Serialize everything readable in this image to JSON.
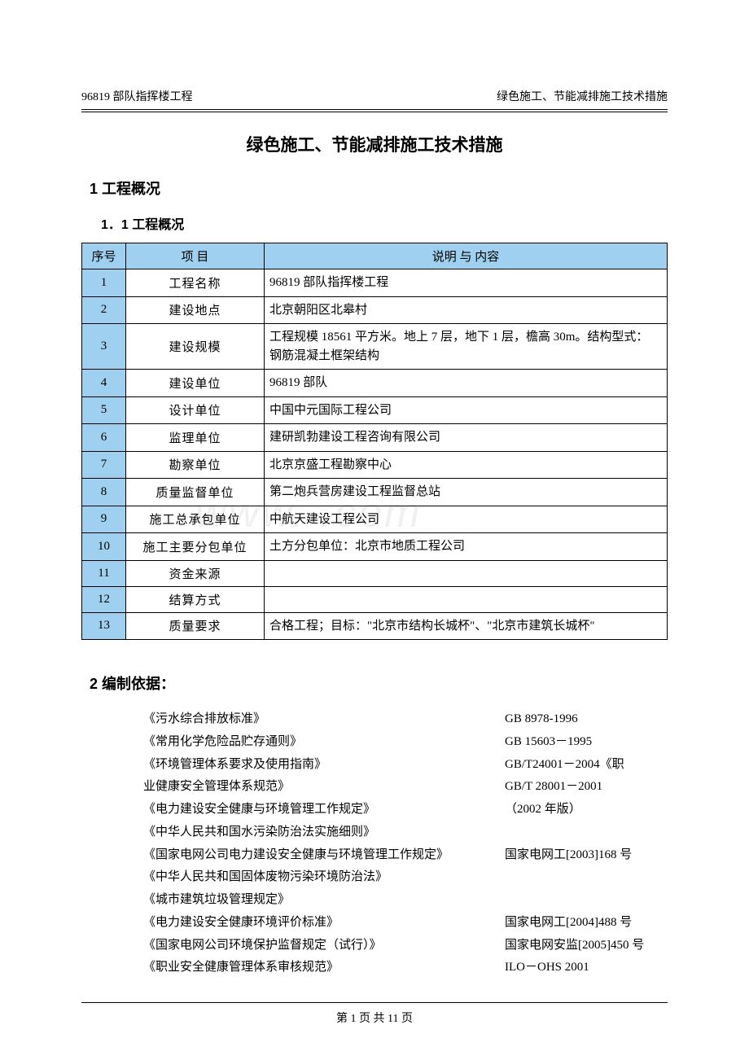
{
  "header": {
    "left": "96819 部队指挥楼工程",
    "right": "绿色施工、节能减排施工技术措施"
  },
  "title": "绿色施工、节能减排施工技术措施",
  "section1": {
    "heading": "1 工程概况",
    "subheading": "1．1 工程概况"
  },
  "table": {
    "headers": {
      "seq": "序号",
      "item": "项   目",
      "desc": "说明 与 内容"
    },
    "rows": [
      {
        "seq": "1",
        "item": "工程名称",
        "desc": "96819 部队指挥楼工程"
      },
      {
        "seq": "2",
        "item": "建设地点",
        "desc": "北京朝阳区北皋村"
      },
      {
        "seq": "3",
        "item": "建设规模",
        "desc": "工程规模 18561 平方米。地上 7 层，地下 1 层，檐高 30m。结构型式：钢筋混凝土框架结构"
      },
      {
        "seq": "4",
        "item": "建设单位",
        "desc": "96819 部队"
      },
      {
        "seq": "5",
        "item": "设计单位",
        "desc": "中国中元国际工程公司"
      },
      {
        "seq": "6",
        "item": "监理单位",
        "desc": "建研凯勃建设工程咨询有限公司"
      },
      {
        "seq": "7",
        "item": "勘察单位",
        "desc": "北京京盛工程勘察中心"
      },
      {
        "seq": "8",
        "item": "质量监督单位",
        "desc": "第二炮兵营房建设工程监督总站"
      },
      {
        "seq": "9",
        "item": "施工总承包单位",
        "desc": "中航天建设工程公司"
      },
      {
        "seq": "10",
        "item": "施工主要分包单位",
        "desc": "土方分包单位：北京市地质工程公司"
      },
      {
        "seq": "11",
        "item": "资金来源",
        "desc": ""
      },
      {
        "seq": "12",
        "item": "结算方式",
        "desc": ""
      },
      {
        "seq": "13",
        "item": "质量要求",
        "desc": "合格工程；目标：\"北京市结构长城杯\"、\"北京市建筑长城杯\""
      }
    ]
  },
  "section2": {
    "heading": "2 编制依据：",
    "refs": [
      {
        "title": "《污水综合排放标准》",
        "code": "GB 8978-1996"
      },
      {
        "title": "《常用化学危险品贮存通则》",
        "code": "GB 15603－1995"
      },
      {
        "title": "《环境管理体系要求及使用指南》",
        "code": "GB/T24001－2004《职"
      },
      {
        "title": "业健康安全管理体系规范》",
        "code": "GB/T 28001－2001",
        "cont": true
      },
      {
        "title": "《电力建设安全健康与环境管理工作规定》",
        "code": "（2002 年版）"
      },
      {
        "title": "《中华人民共和国水污染防治法实施细则》",
        "code": ""
      },
      {
        "title": "《国家电网公司电力建设安全健康与环境管理工作规定》",
        "code": "国家电网工[2003]168 号"
      },
      {
        "title": "《中华人民共和国固体废物污染环境防治法》",
        "code": ""
      },
      {
        "title": "《城市建筑垃圾管理规定》",
        "code": ""
      },
      {
        "title": "《电力建设安全健康环境评价标准》",
        "code": "国家电网工[2004]488 号"
      },
      {
        "title": "《国家电网公司环境保护监督规定（试行）》",
        "code": "国家电网安监[2005]450 号"
      },
      {
        "title": "《职业安全健康管理体系审核规范》",
        "code": "ILO－OHS 2001"
      }
    ]
  },
  "footer": "第 1 页 共 11 页",
  "watermark": "www.      .com"
}
